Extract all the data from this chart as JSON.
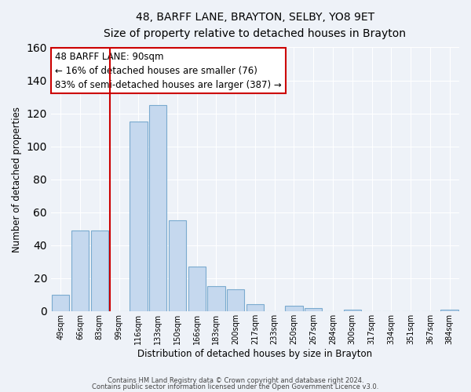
{
  "title": "48, BARFF LANE, BRAYTON, SELBY, YO8 9ET",
  "subtitle": "Size of property relative to detached houses in Brayton",
  "xlabel": "Distribution of detached houses by size in Brayton",
  "ylabel": "Number of detached properties",
  "bar_color": "#c5d8ee",
  "bar_edge_color": "#7aaacf",
  "bg_color": "#eef2f8",
  "grid_color": "#ffffff",
  "annotation_box_color": "#ffffff",
  "annotation_border_color": "#cc0000",
  "vline_color": "#cc0000",
  "bins": [
    "49sqm",
    "66sqm",
    "83sqm",
    "99sqm",
    "116sqm",
    "133sqm",
    "150sqm",
    "166sqm",
    "183sqm",
    "200sqm",
    "217sqm",
    "233sqm",
    "250sqm",
    "267sqm",
    "284sqm",
    "300sqm",
    "317sqm",
    "334sqm",
    "351sqm",
    "367sqm",
    "384sqm"
  ],
  "values": [
    10,
    49,
    49,
    0,
    115,
    125,
    55,
    27,
    15,
    13,
    4,
    0,
    3,
    2,
    0,
    1,
    0,
    0,
    0,
    0,
    1
  ],
  "ylim": [
    0,
    160
  ],
  "yticks": [
    0,
    20,
    40,
    60,
    80,
    100,
    120,
    140,
    160
  ],
  "annotation_line1": "48 BARFF LANE: 90sqm",
  "annotation_line2": "← 16% of detached houses are smaller (76)",
  "annotation_line3": "83% of semi-detached houses are larger (387) →",
  "footer_line1": "Contains HM Land Registry data © Crown copyright and database right 2024.",
  "footer_line2": "Contains public sector information licensed under the Open Government Licence v3.0.",
  "vline_index": 3
}
